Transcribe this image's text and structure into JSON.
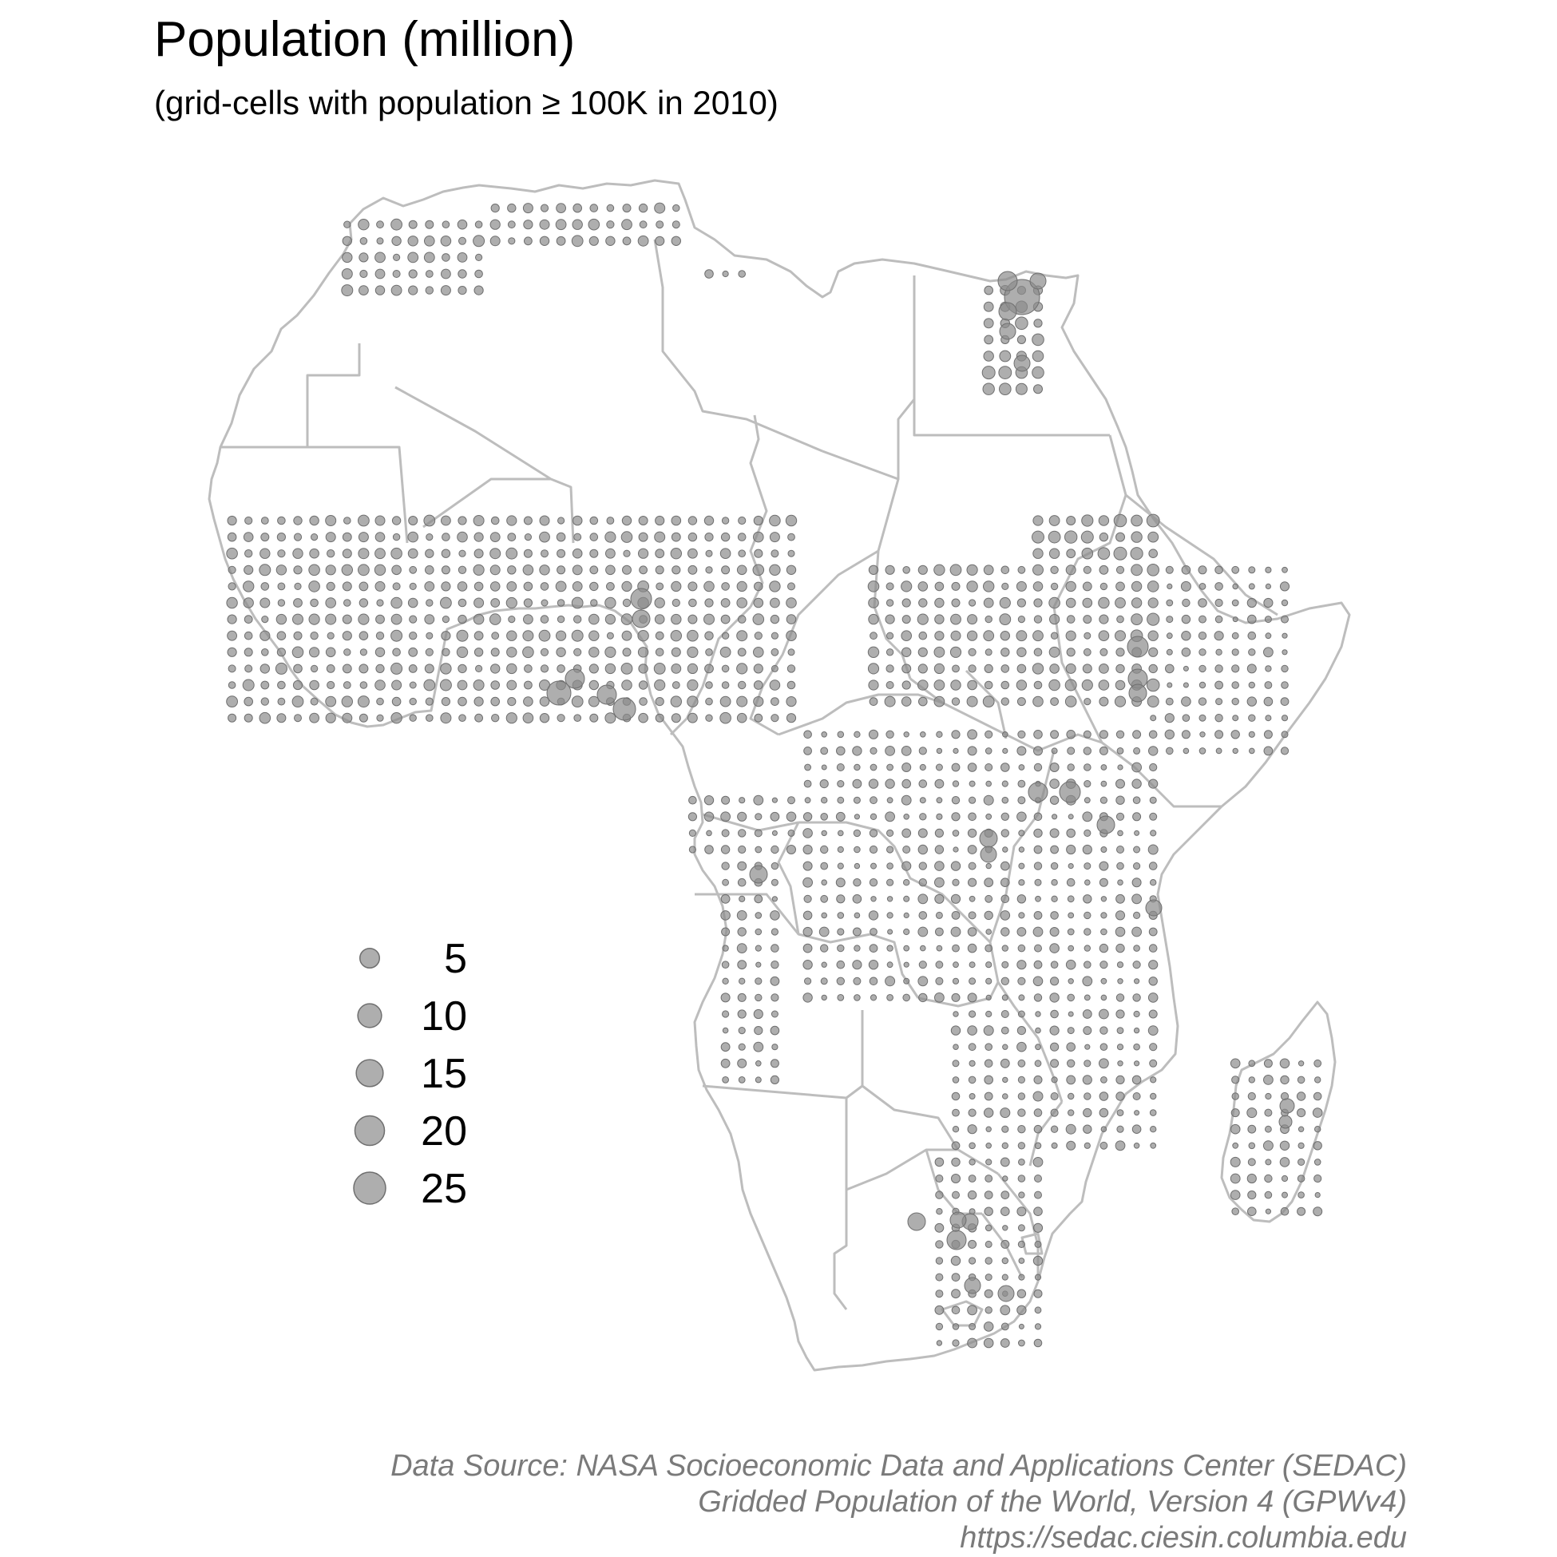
{
  "title": "Population (million)",
  "subtitle": "(grid-cells with population ≥ 100K in 2010)",
  "caption": {
    "line1": "Data Source: NASA Socioeconomic Data and Applications Center (SEDAC)",
    "line2": "Gridded Population of the World, Version 4 (GPWv4)",
    "line3": "https://sedac.ciesin.columbia.edu"
  },
  "legend": {
    "items": [
      {
        "value": 5,
        "label": "5"
      },
      {
        "value": 10,
        "label": "10"
      },
      {
        "value": 15,
        "label": "15"
      },
      {
        "value": 20,
        "label": "20"
      },
      {
        "value": 25,
        "label": "25"
      }
    ]
  },
  "colors": {
    "point_fill": "#8c8c8c",
    "point_stroke": "#6f6f6f",
    "border": "#bdbdbd",
    "caption": "#7a7a7a"
  },
  "chart_data": {
    "type": "proportional-symbol-map",
    "size_variable": "population (million)",
    "legend_values": [
      5,
      10,
      15,
      20,
      25
    ],
    "threshold": "100K",
    "year": 2010,
    "region": "Africa",
    "grid_on": false,
    "legend_placement": "left"
  }
}
